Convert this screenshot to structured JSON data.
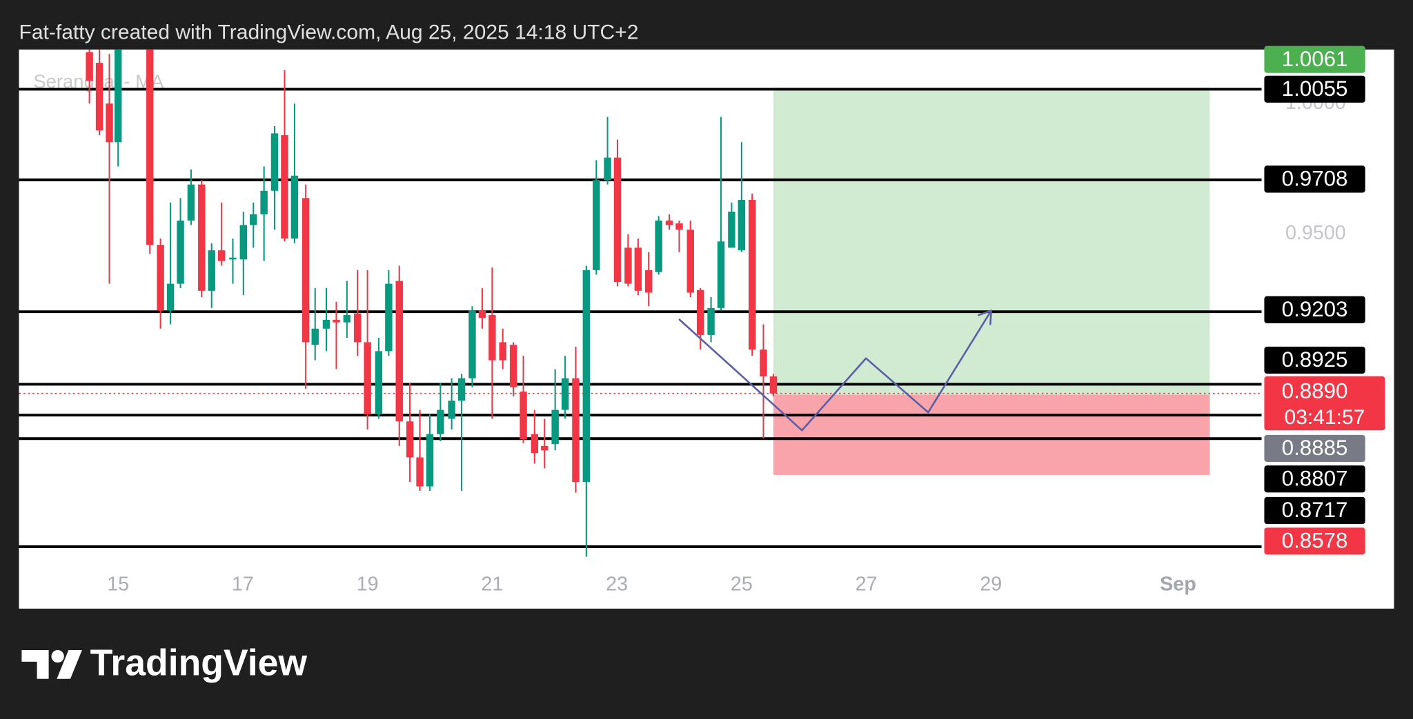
{
  "header": "Fat-fatty created with TradingView.com, Aug 25, 2025 14:18 UTC+2",
  "logo_text": "TradingView",
  "chart_data": {
    "type": "candlestick",
    "watermark": "Serangkai - MA",
    "up_color": "#089981",
    "down_color": "#f23645",
    "x": [
      14.54,
      14.7,
      14.86,
      15.0,
      15.51,
      15.68,
      15.84,
      16.0,
      16.17,
      16.34,
      16.5,
      16.66,
      16.84,
      17.01,
      17.17,
      17.34,
      17.51,
      17.67,
      17.83,
      18.01,
      18.16,
      18.34,
      18.5,
      18.67,
      18.84,
      19.0,
      19.18,
      19.34,
      19.51,
      19.68,
      19.84,
      20.0,
      20.17,
      20.35,
      20.51,
      20.68,
      20.84,
      21.0,
      21.17,
      21.34,
      21.5,
      21.68,
      21.84,
      22.01,
      22.17,
      22.34,
      22.51,
      22.67,
      22.85,
      23.01,
      23.18,
      23.34,
      23.51,
      23.67,
      23.84,
      24.0,
      24.18,
      24.34,
      24.51,
      24.67,
      24.84,
      25.0,
      25.17,
      25.35,
      25.51
    ],
    "open": [
      1.0197,
      1.0156,
      1.0,
      0.9852,
      1.0207,
      0.9459,
      0.9207,
      0.931,
      0.9552,
      0.969,
      0.9283,
      0.9438,
      0.9403,
      0.9403,
      0.9535,
      0.9576,
      0.9666,
      0.9879,
      0.9483,
      0.9638,
      0.9076,
      0.9138,
      0.9172,
      0.9162,
      0.9196,
      0.9086,
      0.881,
      0.9052,
      0.9321,
      0.8783,
      0.8645,
      0.8534,
      0.8734,
      0.8793,
      0.8862,
      0.8948,
      0.9207,
      0.919,
      0.9086,
      0.9076,
      0.8897,
      0.8734,
      0.8689,
      0.8696,
      0.8827,
      0.8948,
      0.8551,
      0.9362,
      0.9707,
      0.9793,
      0.9448,
      0.9448,
      0.9362,
      0.9355,
      0.9552,
      0.9541,
      0.9517,
      0.9286,
      0.9114,
      0.9217,
      0.9448,
      0.9438,
      0.9631,
      0.9058,
      0.8955
    ],
    "high": [
      1.0224,
      1.0207,
      1.019,
      1.0224,
      1.0224,
      0.9483,
      0.9621,
      0.9638,
      0.9748,
      0.9707,
      0.9465,
      0.9621,
      0.9483,
      0.9586,
      0.9621,
      0.9759,
      0.9914,
      1.0128,
      1.0,
      0.969,
      0.9293,
      0.9293,
      0.9241,
      0.9321,
      0.9362,
      0.9362,
      0.9103,
      0.9362,
      0.9379,
      0.8931,
      0.8827,
      0.881,
      0.8931,
      0.8948,
      0.8965,
      0.9224,
      0.9293,
      0.9372,
      0.9138,
      0.9086,
      0.9034,
      0.8827,
      0.8793,
      0.8983,
      0.9034,
      0.9069,
      0.9379,
      0.9783,
      0.9949,
      0.9862,
      0.95,
      0.9483,
      0.9431,
      0.9569,
      0.9576,
      0.9552,
      0.9552,
      0.9293,
      0.9259,
      0.9949,
      0.9621,
      0.9852,
      0.9655,
      0.9155,
      0.8965
    ],
    "low": [
      1.0,
      0.9879,
      0.931,
      0.9759,
      0.9424,
      0.9138,
      0.9155,
      0.9293,
      0.9535,
      0.9259,
      0.9217,
      0.9379,
      0.931,
      0.9266,
      0.9448,
      0.9397,
      0.9517,
      0.9472,
      0.9465,
      0.8907,
      0.9017,
      0.9052,
      0.8983,
      0.9103,
      0.9034,
      0.8752,
      0.8793,
      0.9034,
      0.8689,
      0.8551,
      0.8517,
      0.8517,
      0.8707,
      0.8752,
      0.8517,
      0.8914,
      0.9138,
      0.8793,
      0.8983,
      0.8879,
      0.87,
      0.8621,
      0.8603,
      0.8672,
      0.8793,
      0.851,
      0.8265,
      0.9345,
      0.969,
      0.93,
      0.93,
      0.9266,
      0.9224,
      0.9345,
      0.9517,
      0.9431,
      0.9259,
      0.9058,
      0.9086,
      0.9207,
      0.9448,
      0.9431,
      0.9034,
      0.8717,
      0.8879
    ],
    "close": [
      1.0087,
      0.9897,
      0.9852,
      1.0207,
      0.9459,
      0.9207,
      0.931,
      0.9552,
      0.969,
      0.9283,
      0.9438,
      0.9397,
      0.941,
      0.9535,
      0.9576,
      0.9666,
      0.9886,
      0.9483,
      0.9724,
      0.9086,
      0.9138,
      0.9172,
      0.9162,
      0.919,
      0.9086,
      0.881,
      0.9052,
      0.931,
      0.8783,
      0.8645,
      0.8534,
      0.8734,
      0.8827,
      0.8862,
      0.8948,
      0.9207,
      0.9179,
      0.9017,
      0.9017,
      0.8914,
      0.8714,
      0.8662,
      0.8672,
      0.8827,
      0.8948,
      0.8551,
      0.9362,
      0.9707,
      0.9793,
      0.9317,
      0.931,
      0.9283,
      0.9276,
      0.9552,
      0.9535,
      0.9517,
      0.9276,
      0.9114,
      0.9217,
      0.9472,
      0.9586,
      0.9631,
      0.9058,
      0.8955,
      0.889
    ],
    "xlim": [
      13.41,
      33.34
    ],
    "ylim": [
      0.8259,
      1.0207
    ],
    "xticks": [
      15,
      17,
      19,
      21,
      23,
      25,
      27,
      29,
      {
        "value": 32,
        "label": "Sep"
      }
    ],
    "yticks": [
      {
        "value": 1,
        "label": "1.0000"
      },
      {
        "value": 0.95,
        "label": "0.9500"
      }
    ],
    "levels": [
      1.0055,
      0.9708,
      0.9203,
      0.8925,
      0.8807,
      0.8717
    ],
    "extra_level": 0.8303,
    "level_color": "#000000",
    "last_price": {
      "value": 0.889,
      "label": "0.8890"
    },
    "countdown": "03:41:57",
    "position": {
      "x": [
        25.51,
        32.51
      ],
      "entry": 0.8885,
      "target": 1.0061,
      "stop": 0.8578,
      "target_color": "#4caf50",
      "stop_color": "#f23645",
      "entry_color": "#787b86"
    }
  }
}
